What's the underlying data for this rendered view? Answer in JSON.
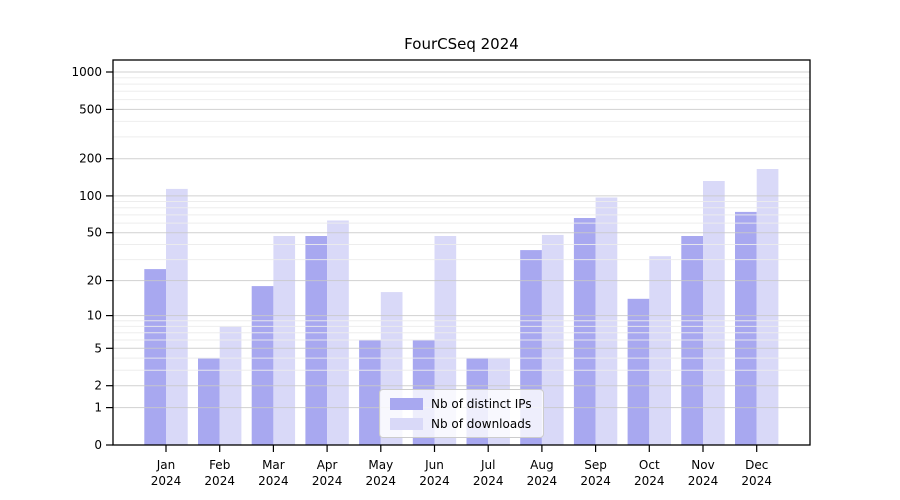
{
  "figure": {
    "background_color": "#ffffff"
  },
  "chart_data": {
    "type": "bar",
    "title": "FourCSeq 2024",
    "xlabel": "",
    "ylabel": "",
    "categories": [
      "Jan",
      "Feb",
      "Mar",
      "Apr",
      "May",
      "Jun",
      "Jul",
      "Aug",
      "Sep",
      "Oct",
      "Nov",
      "Dec"
    ],
    "category_year": "2024",
    "series": [
      {
        "name": "Nb of distinct IPs",
        "color": "#a8a8f0",
        "values": [
          25,
          4,
          18,
          47,
          6,
          6,
          4,
          36,
          66,
          14,
          47,
          74
        ]
      },
      {
        "name": "Nb of downloads",
        "color": "#d9d9f8",
        "values": [
          114,
          8,
          47,
          63,
          16,
          47,
          4,
          48,
          97,
          32,
          132,
          165
        ]
      }
    ],
    "y_axis": {
      "scale": "log1p",
      "ticks": [
        0,
        1,
        2,
        5,
        10,
        20,
        50,
        100,
        200,
        500,
        1000
      ],
      "minor_gridlines": [
        3,
        4,
        6,
        7,
        8,
        9,
        30,
        40,
        60,
        70,
        80,
        90,
        300,
        400,
        600,
        700,
        800,
        900
      ],
      "ylim": [
        0,
        1250
      ]
    },
    "grid": {
      "major_color": "#c9c9c9",
      "minor_color": "#ececec",
      "grid_on": true,
      "grid_above_bars": true
    },
    "legend": {
      "position": "lower center"
    },
    "spine_color": "#000000",
    "tick_label_color": "#000000"
  }
}
